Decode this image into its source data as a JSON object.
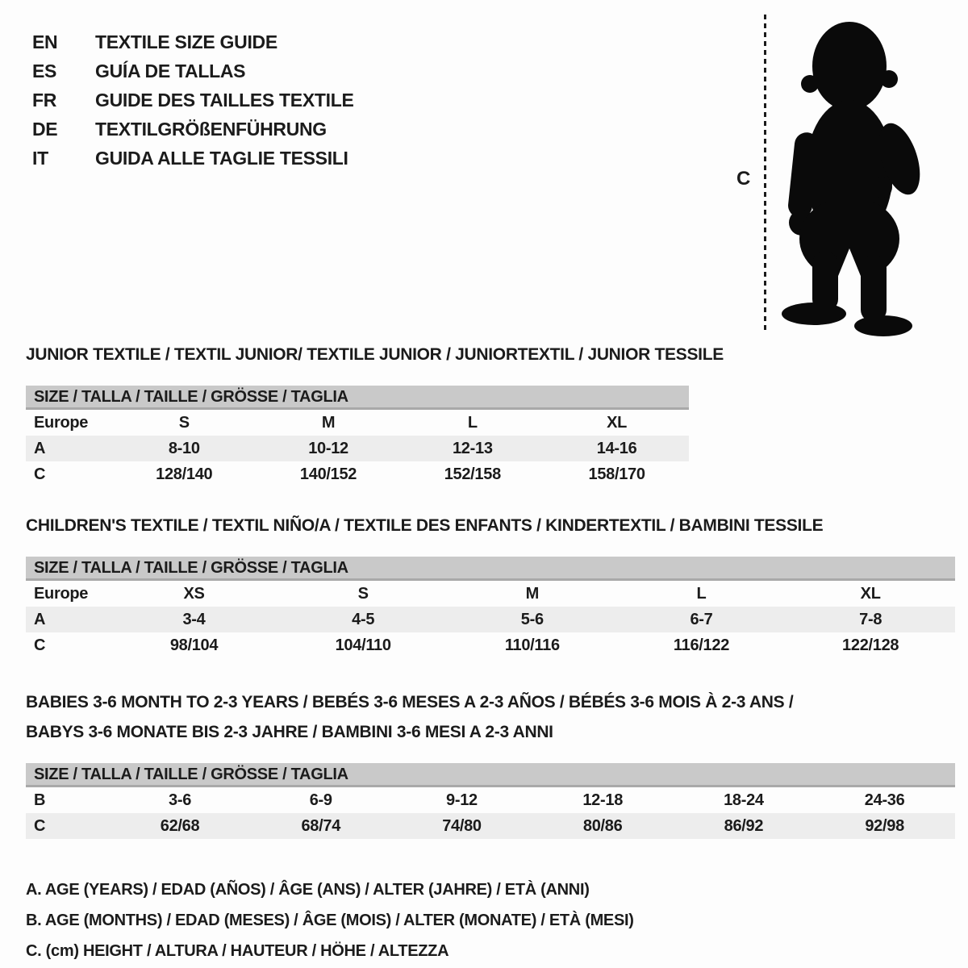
{
  "colors": {
    "ink": "#1b1b1b",
    "header_bar": "#c9c9c9",
    "header_bar_edge": "#a9a9a9",
    "row_shaded": "#ededed",
    "paper": "#fdfdfd"
  },
  "header": {
    "languages": [
      {
        "code": "EN",
        "title": "TEXTILE SIZE GUIDE"
      },
      {
        "code": "ES",
        "title": "GUÍA DE TALLAS"
      },
      {
        "code": "FR",
        "title": "GUIDE DES TAILLES TEXTILE"
      },
      {
        "code": "DE",
        "title": "TEXTILGRÖßENFÜHRUNG"
      },
      {
        "code": "IT",
        "title": "GUIDA ALLE TAGLIE TESSILI"
      }
    ],
    "figure": {
      "measure_label": "C"
    }
  },
  "size_header": "SIZE / TALLA / TAILLE / GRÖSSE / TAGLIA",
  "sections": [
    {
      "id": "junior",
      "title": "JUNIOR TEXTILE / TEXTIL JUNIOR/ TEXTILE JUNIOR / JUNIORTEXTIL / JUNIOR TESSILE",
      "rows": [
        [
          "Europe",
          "S",
          "M",
          "L",
          "XL"
        ],
        [
          "A",
          "8-10",
          "10-12",
          "12-13",
          "14-16"
        ],
        [
          "C",
          "128/140",
          "140/152",
          "152/158",
          "158/170"
        ]
      ]
    },
    {
      "id": "children",
      "title": "CHILDREN'S TEXTILE / TEXTIL NIÑO/A / TEXTILE DES ENFANTS / KINDERTEXTIL / BAMBINI TESSILE",
      "rows": [
        [
          "Europe",
          "XS",
          "S",
          "M",
          "L",
          "XL"
        ],
        [
          "A",
          "3-4",
          "4-5",
          "5-6",
          "6-7",
          "7-8"
        ],
        [
          "C",
          "98/104",
          "104/110",
          "110/116",
          "116/122",
          "122/128"
        ]
      ]
    },
    {
      "id": "babies",
      "title_lines": [
        "BABIES 3-6 MONTH TO 2-3 YEARS / BEBÉS 3-6 MESES A 2-3 AÑOS / BÉBÉS 3-6 MOIS À 2-3 ANS /",
        "BABYS 3-6 MONATE BIS 2-3 JAHRE / BAMBINI 3-6 MESI A 2-3 ANNI"
      ],
      "rows": [
        [
          "B",
          "3-6",
          "6-9",
          "9-12",
          "12-18",
          "18-24",
          "24-36"
        ],
        [
          "C",
          "62/68",
          "68/74",
          "74/80",
          "80/86",
          "86/92",
          "92/98"
        ]
      ]
    }
  ],
  "legend": [
    "A. AGE (YEARS) / EDAD (AÑOS) / ÂGE (ANS) / ALTER (JAHRE) / ETÀ (ANNI)",
    "B. AGE (MONTHS) / EDAD (MESES) / ÂGE (MOIS) / ALTER (MONATE) / ETÀ (MESI)",
    "C. (cm) HEIGHT / ALTURA / HAUTEUR / HÖHE / ALTEZZA"
  ]
}
